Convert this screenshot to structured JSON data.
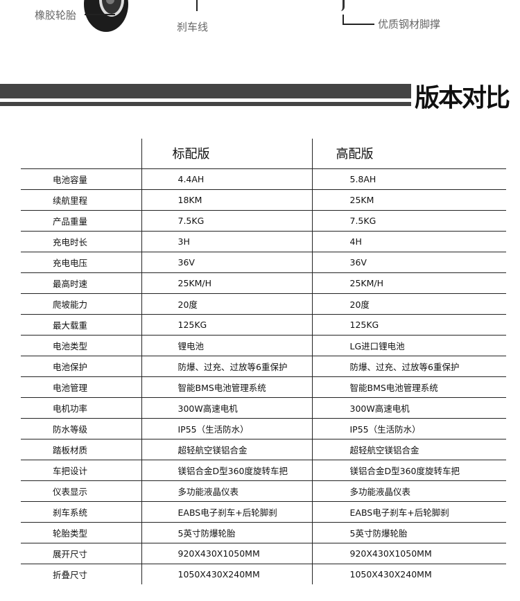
{
  "callouts": {
    "tire": "橡胶轮胎",
    "brake_cable": "刹车线",
    "kickstand": "优质钢材脚撑"
  },
  "section_title": "版本对比",
  "table": {
    "headers": [
      "",
      "标配版",
      "高配版"
    ],
    "rows": [
      [
        "电池容量",
        "4.4AH",
        "5.8AH"
      ],
      [
        "续航里程",
        "18KM",
        "25KM"
      ],
      [
        "产品重量",
        "7.5KG",
        "7.5KG"
      ],
      [
        "充电时长",
        "3H",
        "4H"
      ],
      [
        "充电电压",
        "36V",
        "36V"
      ],
      [
        "最高时速",
        "25KM/H",
        "25KM/H"
      ],
      [
        "爬坡能力",
        "20度",
        "20度"
      ],
      [
        "最大载重",
        "125KG",
        "125KG"
      ],
      [
        "电池类型",
        "锂电池",
        "LG进口锂电池"
      ],
      [
        "电池保护",
        "防爆、过充、过放等6重保护",
        "防爆、过充、过放等6重保护"
      ],
      [
        "电池管理",
        "智能BMS电池管理系统",
        "智能BMS电池管理系统"
      ],
      [
        "电机功率",
        "300W高速电机",
        "300W高速电机"
      ],
      [
        "防水等级",
        "IP55（生活防水）",
        "IP55（生活防水）"
      ],
      [
        "踏板材质",
        "超轻航空镁铝合金",
        "超轻航空镁铝合金"
      ],
      [
        "车把设计",
        "镁铝合金D型360度旋转车把",
        "镁铝合金D型360度旋转车把"
      ],
      [
        "仪表显示",
        "多功能液晶仪表",
        "多功能液晶仪表"
      ],
      [
        "刹车系统",
        "EABS电子刹车+后轮脚刹",
        "EABS电子刹车+后轮脚刹"
      ],
      [
        "轮胎类型",
        "5英寸防爆轮胎",
        "5英寸防爆轮胎"
      ],
      [
        "展开尺寸",
        "920X430X1050MM",
        "920X430X1050MM"
      ],
      [
        "折叠尺寸",
        "1050X430X240MM",
        "1050X430X240MM"
      ]
    ]
  }
}
